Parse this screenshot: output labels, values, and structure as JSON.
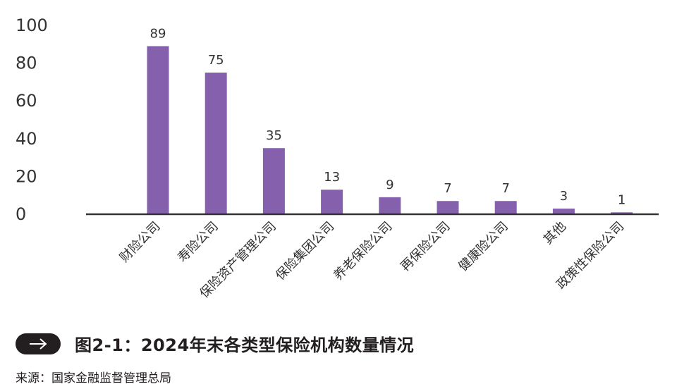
{
  "chart_data": {
    "type": "bar",
    "categories": [
      "财险公司",
      "寿险公司",
      "保险资产管理公司",
      "保险集团公司",
      "养老保险公司",
      "再保险公司",
      "健康险公司",
      "其他",
      "政策性保险公司"
    ],
    "values": [
      89,
      75,
      35,
      13,
      9,
      7,
      7,
      3,
      1
    ],
    "y_ticks": [
      "100",
      "80",
      "60",
      "40",
      "20",
      "0"
    ],
    "ylim": [
      0,
      100
    ],
    "bar_color": "#8460ad",
    "axis_color": "#333333",
    "grid": false,
    "title": "图2-1：2024年末各类型保险机构数量情况"
  },
  "caption": {
    "icon": "arrow-right-icon",
    "title": "图2-1：2024年末各类型保险机构数量情况"
  },
  "source": "来源：国家金融监督管理总局"
}
